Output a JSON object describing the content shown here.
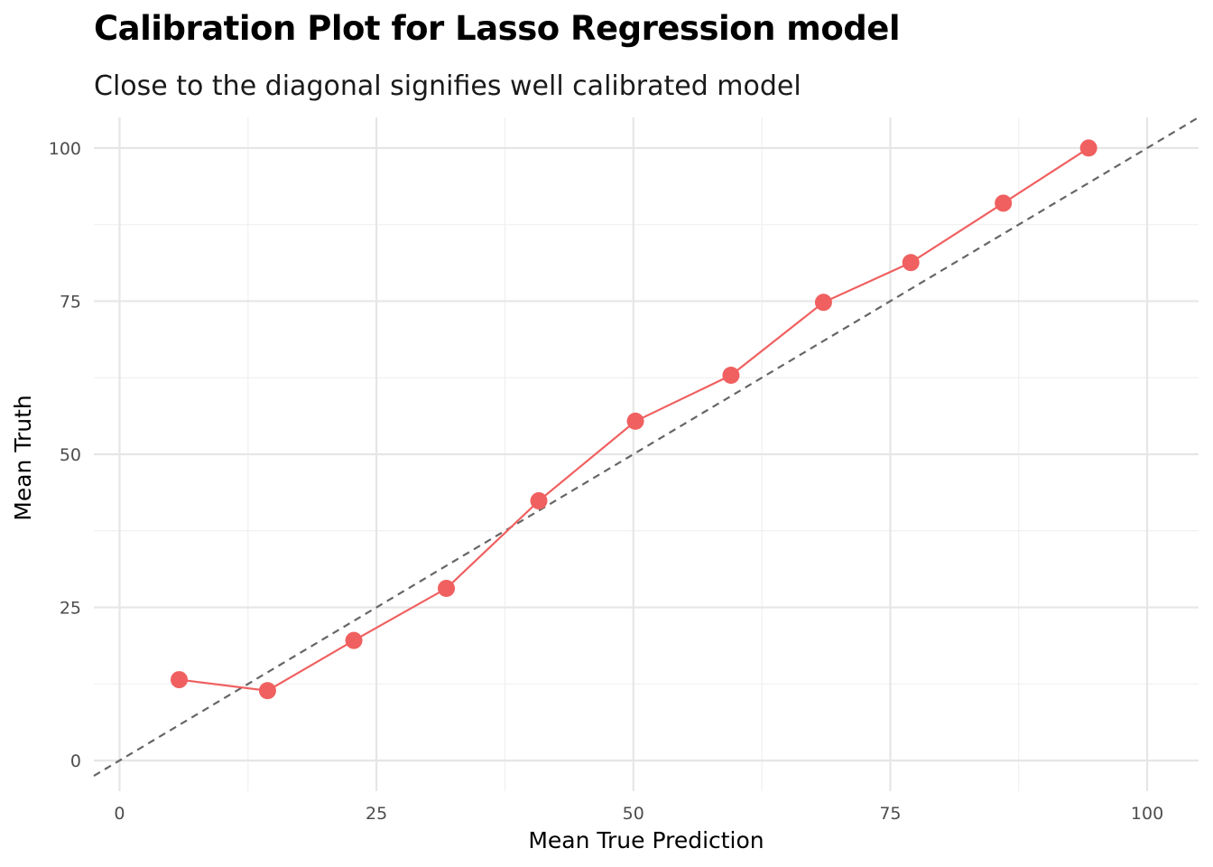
{
  "chart_data": {
    "type": "line",
    "title": "Calibration Plot for Lasso Regression model",
    "subtitle": "Close to the diagonal signifies well calibrated model",
    "xlabel": "Mean True Prediction",
    "ylabel": "Mean Truth",
    "xlim": [
      -2.5,
      105
    ],
    "ylim": [
      -5,
      105
    ],
    "x_ticks": [
      "0",
      "25",
      "50",
      "75",
      "100"
    ],
    "y_ticks": [
      "0",
      "25",
      "50",
      "75",
      "100"
    ],
    "grid": true,
    "legend": "none",
    "reference_line": {
      "type": "diagonal",
      "slope": 1,
      "intercept": 0,
      "style": "dashed",
      "color": "#666666"
    },
    "series": [
      {
        "color": "#F06060",
        "x": [
          5.8,
          14.4,
          22.8,
          31.8,
          40.8,
          50.2,
          59.5,
          68.5,
          77.0,
          86.0,
          94.3
        ],
        "y": [
          13.2,
          11.4,
          19.6,
          28.1,
          42.4,
          55.4,
          62.9,
          74.8,
          81.3,
          91.0,
          100.0
        ]
      }
    ]
  }
}
